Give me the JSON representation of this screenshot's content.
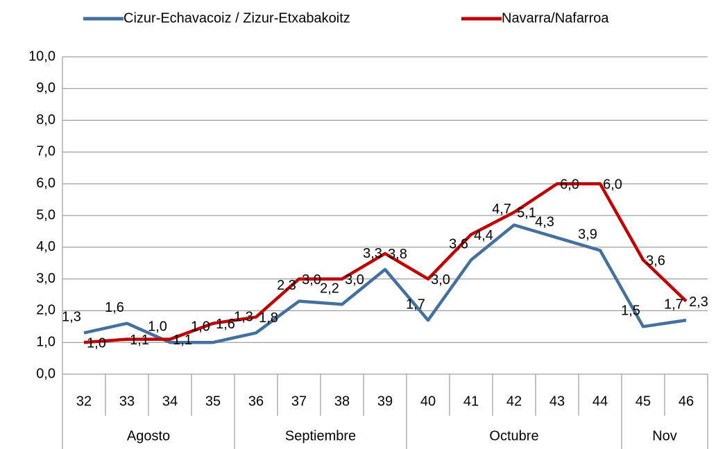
{
  "chart_data": {
    "type": "line",
    "categories": [
      "32",
      "33",
      "34",
      "35",
      "36",
      "37",
      "38",
      "39",
      "40",
      "41",
      "42",
      "43",
      "44",
      "45",
      "46"
    ],
    "groups": [
      {
        "name": "Agosto",
        "count": 4
      },
      {
        "name": "Septiembre",
        "count": 4
      },
      {
        "name": "Octubre",
        "count": 5
      },
      {
        "name": "Nov",
        "count": 2
      }
    ],
    "series": [
      {
        "name": "Cizur-Echavacoiz / Zizur-Etxabakoitz",
        "color": "#44709d",
        "values": [
          1.3,
          1.6,
          1.0,
          1.0,
          1.3,
          2.3,
          2.2,
          3.3,
          1.7,
          3.6,
          4.7,
          4.3,
          3.9,
          1.5,
          1.7
        ],
        "value_labels": [
          "1,3",
          "1,6",
          "1,0",
          "1,0",
          "1,3",
          "2,3",
          "2,2",
          "3,3",
          "1,7",
          "3,6",
          "4,7",
          "4,3",
          "3,9",
          "1,5",
          "1,7"
        ]
      },
      {
        "name": "Navarra/Nafarroa",
        "color": "#c00000",
        "values": [
          1.0,
          1.1,
          1.1,
          1.6,
          1.8,
          3.0,
          3.0,
          3.8,
          3.0,
          4.4,
          5.1,
          6.0,
          6.0,
          3.6,
          2.3
        ],
        "value_labels": [
          "1,0",
          "1,1",
          "1,1",
          "1,6",
          "1,8",
          "3,0",
          "3,0",
          "3,8",
          "3,0",
          "4,4",
          "5,1",
          "6,0",
          "6,0",
          "3,6",
          "2,3"
        ]
      }
    ],
    "ylim": [
      0,
      10
    ],
    "yticks": [
      {
        "value": 0,
        "label": "0,0"
      },
      {
        "value": 1,
        "label": "1,0"
      },
      {
        "value": 2,
        "label": "2,0"
      },
      {
        "value": 3,
        "label": "3,0"
      },
      {
        "value": 4,
        "label": "4,0"
      },
      {
        "value": 5,
        "label": "5,0"
      },
      {
        "value": 6,
        "label": "6,0"
      },
      {
        "value": 7,
        "label": "7,0"
      },
      {
        "value": 8,
        "label": "8,0"
      },
      {
        "value": 9,
        "label": "9,0"
      },
      {
        "value": 10,
        "label": "10,0"
      }
    ],
    "grid": true,
    "legend": "top"
  }
}
